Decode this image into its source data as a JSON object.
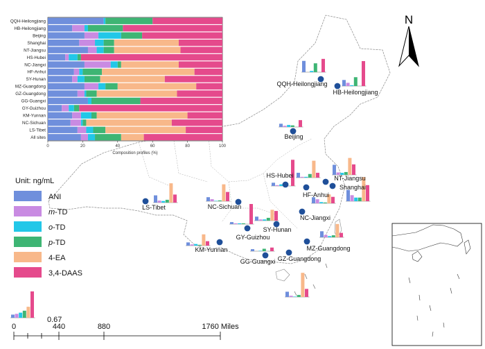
{
  "unit_label": "Unit:  ng/mL",
  "legend_scale_value": "0.67",
  "north_label": "N",
  "scale_bar": {
    "ticks": [
      "0",
      "440",
      "880",
      "1760 Miles"
    ]
  },
  "palette": {
    "ANI": "#6f8fdc",
    "m-TD": "#c98be2",
    "o-TD": "#22c7e8",
    "p-TD": "#3eb574",
    "4-EA": "#f8b88a",
    "3,4-DAAS": "#e54a8c"
  },
  "legend": [
    {
      "label": "ANI",
      "italic_prefix": "",
      "color": "#6f8fdc"
    },
    {
      "label": "-TD",
      "italic_prefix": "m",
      "color": "#c98be2"
    },
    {
      "label": "-TD",
      "italic_prefix": "o",
      "color": "#22c7e8"
    },
    {
      "label": "-TD",
      "italic_prefix": "p",
      "color": "#3eb574"
    },
    {
      "label": "4-EA",
      "italic_prefix": "",
      "color": "#f8b88a"
    },
    {
      "label": "3,4-DAAS",
      "italic_prefix": "",
      "color": "#e54a8c"
    }
  ],
  "chart_data": {
    "type": "bar",
    "orientation": "horizontal-stacked-percent",
    "xlabel": "Composition profiles (%)",
    "xlim": [
      0,
      100
    ],
    "xticks": [
      "0",
      "20",
      "40",
      "60",
      "80",
      "100"
    ],
    "series_names": [
      "ANI",
      "m-TD",
      "o-TD",
      "p-TD",
      "4-EA",
      "3,4-DAAS"
    ],
    "rows": [
      {
        "site": "QQH-Heilongjiang",
        "values": [
          32,
          0,
          1,
          27,
          0,
          40
        ]
      },
      {
        "site": "HB-Heilongjiang",
        "values": [
          14,
          7,
          2,
          20,
          0,
          57
        ]
      },
      {
        "site": "Beijing",
        "values": [
          21,
          8,
          13,
          12,
          0,
          46
        ]
      },
      {
        "site": "Shanghai",
        "values": [
          18,
          9,
          5,
          6,
          37,
          25
        ]
      },
      {
        "site": "NT-Jiangsu",
        "values": [
          23,
          5,
          4,
          6,
          38,
          24
        ]
      },
      {
        "site": "HS-Hubei",
        "values": [
          10,
          2,
          5,
          2,
          0,
          81
        ]
      },
      {
        "site": "NC-Jiangxi",
        "values": [
          21,
          15,
          4,
          2,
          33,
          25
        ]
      },
      {
        "site": "HF-Anhui",
        "values": [
          15,
          3,
          2,
          11,
          53,
          16
        ]
      },
      {
        "site": "SY-Hunan",
        "values": [
          14,
          3,
          4,
          9,
          37,
          33
        ]
      },
      {
        "site": "MZ-Guangdong",
        "values": [
          21,
          8,
          4,
          7,
          45,
          15
        ]
      },
      {
        "site": "GZ-Guangdong",
        "values": [
          17,
          4,
          1,
          6,
          46,
          26
        ]
      },
      {
        "site": "GG-Guangxi",
        "values": [
          23,
          0,
          2,
          28,
          0,
          47
        ]
      },
      {
        "site": "GY-Guizhou",
        "values": [
          8,
          4,
          3,
          3,
          0,
          82
        ]
      },
      {
        "site": "KM-Yunnan",
        "values": [
          14,
          5,
          6,
          3,
          52,
          20
        ]
      },
      {
        "site": "NC-Sichuan",
        "values": [
          13,
          6,
          1,
          2,
          49,
          29
        ]
      },
      {
        "site": "LS-Tibet",
        "values": [
          17,
          5,
          4,
          7,
          46,
          21
        ]
      },
      {
        "site": "All sites",
        "values": [
          19,
          4,
          4,
          15,
          13,
          45
        ]
      }
    ]
  },
  "sites": [
    {
      "name": "QQH-Heilongjiang",
      "bars": [
        0.28,
        0.0,
        0.03,
        0.22,
        0.0,
        0.33
      ]
    },
    {
      "name": "HB-Heilongjiang",
      "bars": [
        0.15,
        0.08,
        0.02,
        0.22,
        0.0,
        0.62
      ]
    },
    {
      "name": "Beijing",
      "bars": [
        0.08,
        0.03,
        0.05,
        0.04,
        0.0,
        0.17
      ]
    },
    {
      "name": "Shanghai",
      "bars": [
        0.28,
        0.15,
        0.09,
        0.09,
        0.6,
        0.4
      ]
    },
    {
      "name": "NT-Jiangsu",
      "bars": [
        0.25,
        0.06,
        0.05,
        0.07,
        0.42,
        0.26
      ]
    },
    {
      "name": "HS-Hubei",
      "bars": [
        0.08,
        0.02,
        0.04,
        0.02,
        0.0,
        0.65
      ]
    },
    {
      "name": "NC-Jiangxi",
      "bars": [
        0.15,
        0.1,
        0.03,
        0.02,
        0.22,
        0.16
      ]
    },
    {
      "name": "HF-Anhui",
      "bars": [
        0.12,
        0.02,
        0.02,
        0.09,
        0.42,
        0.12
      ]
    },
    {
      "name": "SY-Hunan",
      "bars": [
        0.1,
        0.03,
        0.03,
        0.07,
        0.27,
        0.24
      ]
    },
    {
      "name": "MZ-Guangdong",
      "bars": [
        0.15,
        0.06,
        0.03,
        0.05,
        0.33,
        0.11
      ]
    },
    {
      "name": "GZ-Guangdong",
      "bars": [
        0.13,
        0.03,
        0.01,
        0.05,
        0.6,
        0.2
      ]
    },
    {
      "name": "GG-Guangxi",
      "bars": [
        0.05,
        0.0,
        0.01,
        0.06,
        0.0,
        0.09
      ]
    },
    {
      "name": "GY-Guizhou",
      "bars": [
        0.05,
        0.02,
        0.02,
        0.02,
        0.0,
        0.5
      ]
    },
    {
      "name": "KM-Yunnan",
      "bars": [
        0.08,
        0.03,
        0.04,
        0.02,
        0.28,
        0.11
      ]
    },
    {
      "name": "NC-Sichuan",
      "bars": [
        0.1,
        0.05,
        0.01,
        0.02,
        0.42,
        0.23
      ]
    },
    {
      "name": "LS-Tibet",
      "bars": [
        0.18,
        0.05,
        0.04,
        0.07,
        0.48,
        0.2
      ]
    }
  ]
}
